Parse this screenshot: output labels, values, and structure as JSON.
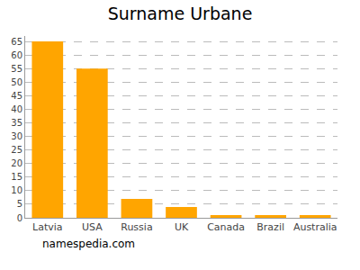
{
  "chart_data": {
    "type": "bar",
    "title": "Surname Urbane",
    "categories": [
      "Latvia",
      "USA",
      "Russia",
      "UK",
      "Canada",
      "Brazil",
      "Australia"
    ],
    "values": [
      65,
      55,
      7,
      4,
      1,
      1,
      1
    ],
    "color": "#ffa500",
    "ylim": [
      0,
      67
    ],
    "yticks": [
      0,
      5,
      10,
      15,
      20,
      25,
      30,
      35,
      40,
      45,
      50,
      55,
      60,
      65
    ],
    "grid": true,
    "annotations": [
      "namespedia.com"
    ]
  }
}
